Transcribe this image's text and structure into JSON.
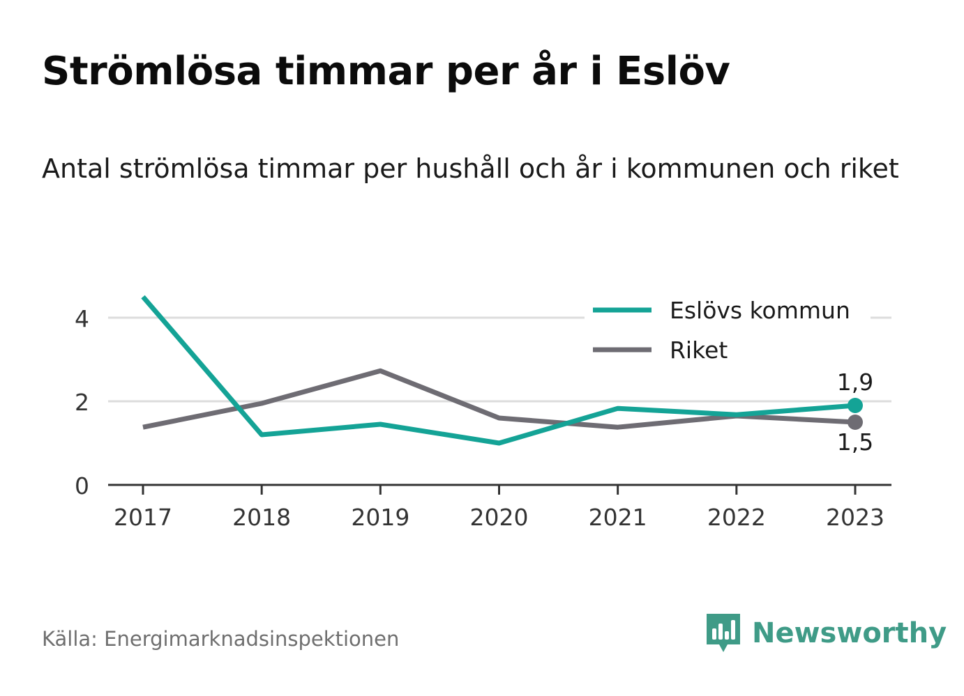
{
  "header": {
    "title": "Strömlösa timmar per år i Eslöv",
    "subtitle": "Antal strömlösa timmar per hushåll och år i kommunen och riket"
  },
  "chart_data": {
    "type": "line",
    "x": [
      "2017",
      "2018",
      "2019",
      "2020",
      "2021",
      "2022",
      "2023"
    ],
    "series": [
      {
        "name": "Eslövs kommun",
        "color": "#14a396",
        "values": [
          4.5,
          1.2,
          1.45,
          1.0,
          1.83,
          1.68,
          1.9
        ],
        "end_label": "1,9"
      },
      {
        "name": "Riket",
        "color": "#6e6c73",
        "values": [
          1.38,
          1.95,
          2.73,
          1.6,
          1.38,
          1.65,
          1.5
        ],
        "end_label": "1,5"
      }
    ],
    "yticks": [
      0,
      2,
      4
    ],
    "ytick_labels": [
      "0",
      "2",
      "4"
    ],
    "ylim": [
      0,
      5
    ],
    "grid": true,
    "legend": "top-right",
    "xlabel": "",
    "ylabel": ""
  },
  "footer": {
    "source": "Källa: Energimarknadsinspektionen",
    "brand": "Newsworthy",
    "brand_color": "#3f9b87"
  }
}
